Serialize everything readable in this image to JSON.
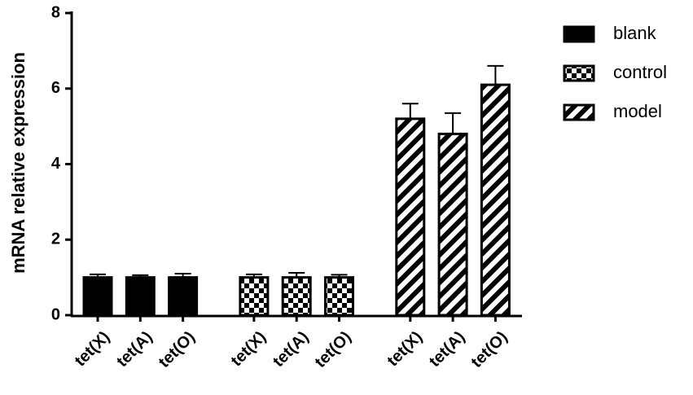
{
  "chart_data": {
    "type": "bar",
    "y_label": "mRNA relative expression",
    "categories": [
      "tet(X)",
      "tet(A)",
      "tet(O)",
      "tet(X)",
      "tet(A)",
      "tet(O)",
      "tet(X)",
      "tet(A)",
      "tet(O)"
    ],
    "series": [
      {
        "name": "blank",
        "color": "#000000",
        "pattern": "solid",
        "values": [
          1.0,
          1.0,
          1.0,
          null,
          null,
          null,
          null,
          null,
          null
        ],
        "errors": [
          0.08,
          0.06,
          0.1,
          null,
          null,
          null,
          null,
          null,
          null
        ]
      },
      {
        "name": "control",
        "color": "#000000",
        "pattern": "checker",
        "values": [
          null,
          null,
          null,
          1.0,
          1.0,
          1.0,
          null,
          null,
          null
        ],
        "errors": [
          null,
          null,
          null,
          0.08,
          0.12,
          0.07,
          null,
          null,
          null
        ]
      },
      {
        "name": "model",
        "color": "#000000",
        "pattern": "stripes",
        "values": [
          null,
          null,
          null,
          null,
          null,
          null,
          5.2,
          4.8,
          6.1
        ],
        "errors": [
          null,
          null,
          null,
          null,
          null,
          null,
          0.4,
          0.55,
          0.5
        ]
      }
    ],
    "ylim": [
      0,
      8
    ],
    "yticks": [
      0,
      2,
      4,
      6,
      8
    ],
    "grid": false,
    "legend": "top-right"
  }
}
